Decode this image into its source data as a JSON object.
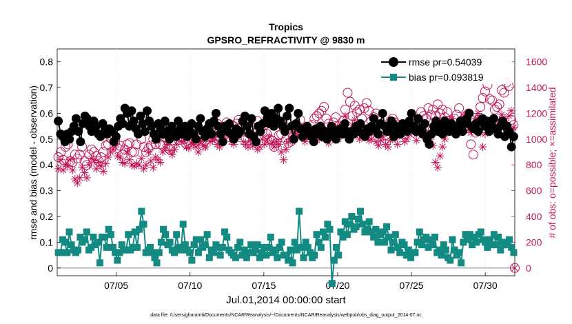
{
  "chart_data": {
    "type": "line",
    "title": "Tropics",
    "subtitle": "GPSRO_REFRACTIVITY @ 9830 m",
    "xlabel": "Jul.01,2014 00:00:00 start",
    "ylabel": "rmse and bias (model - observation)",
    "ylabel_right": "# of obs: o=possible; ×=assimilated",
    "footnote": "data file: /Users/gharamti/Documents/NCAR/Reanalysis/~/Documents/NCAR/Reanalysis/webpub/obs_diag_output_2014-07.nc",
    "xlim": [
      1.0,
      32.0
    ],
    "ylim": [
      -0.03,
      0.85
    ],
    "ylim_right": [
      -60,
      1700
    ],
    "x_ticks": [
      5,
      10,
      15,
      20,
      25,
      30
    ],
    "x_tick_labels": [
      "07/05",
      "07/10",
      "07/15",
      "07/20",
      "07/25",
      "07/30"
    ],
    "y_ticks": [
      0,
      0.1,
      0.2,
      0.3,
      0.4,
      0.5,
      0.6,
      0.7,
      0.8
    ],
    "y_tick_labels": [
      "0",
      "0.1",
      "0.2",
      "0.3",
      "0.4",
      "0.5",
      "0.6",
      "0.7",
      "0.8"
    ],
    "y_right_ticks": [
      0,
      200,
      400,
      600,
      800,
      1000,
      1200,
      1400,
      1600
    ],
    "y_right_tick_labels": [
      "0",
      "200",
      "400",
      "600",
      "800",
      "1000",
      "1200",
      "1400",
      "1600"
    ],
    "legend": {
      "position": "top-right",
      "entries": [
        "rmse pr=0.54039",
        "bias pr=0.093819"
      ]
    },
    "colors": {
      "rmse": "#000000",
      "bias": "#138a82",
      "obs": "#c2185b",
      "zero_line": "#aaaaaa"
    },
    "series": [
      {
        "name": "rmse",
        "axis": "left",
        "marker": "circle",
        "values": [
          0.57,
          0.52,
          0.51,
          0.49,
          0.52,
          0.5,
          0.53,
          0.55,
          0.58,
          0.53,
          0.49,
          0.56,
          0.59,
          0.58,
          0.55,
          0.53,
          0.57,
          0.55,
          0.52,
          0.51,
          0.56,
          0.54,
          0.52,
          0.54,
          0.53,
          0.49,
          0.51,
          0.55,
          0.58,
          0.56,
          0.62,
          0.6,
          0.55,
          0.61,
          0.57,
          0.54,
          0.52,
          0.59,
          0.56,
          0.53,
          0.61,
          0.57,
          0.55,
          0.52,
          0.5,
          0.56,
          0.54,
          0.52,
          0.57,
          0.53,
          0.5,
          0.55,
          0.53,
          0.51,
          0.57,
          0.54,
          0.52,
          0.55,
          0.51,
          0.53,
          0.56,
          0.52,
          0.5,
          0.55,
          0.58,
          0.53,
          0.51,
          0.54,
          0.56,
          0.52,
          0.57,
          0.6,
          0.55,
          0.52,
          0.49,
          0.55,
          0.53,
          0.56,
          0.52,
          0.5,
          0.54,
          0.52,
          0.53,
          0.57,
          0.59,
          0.55,
          0.52,
          0.58,
          0.51,
          0.49,
          0.55,
          0.53,
          0.56,
          0.61,
          0.58,
          0.56,
          0.6,
          0.55,
          0.58,
          0.62,
          0.57,
          0.55,
          0.53,
          0.59,
          0.62,
          0.55,
          0.5,
          0.56,
          0.6,
          0.54,
          0.51,
          0.53,
          0.55,
          0.53,
          0.51,
          0.49,
          0.54,
          0.52,
          0.55,
          0.51,
          0.53,
          0.5,
          0.52,
          0.55,
          0.52,
          0.5,
          0.53,
          0.54,
          0.52,
          0.56,
          0.53,
          0.5,
          0.53,
          0.52,
          0.55,
          0.53,
          0.56,
          0.52,
          0.51,
          0.54,
          0.53,
          0.55,
          0.58,
          0.54,
          0.52,
          0.56,
          0.6,
          0.55,
          0.53,
          0.54,
          0.57,
          0.51,
          0.55,
          0.53,
          0.52,
          0.56,
          0.55,
          0.53,
          0.57,
          0.6,
          0.55,
          0.53,
          0.58,
          0.54,
          0.52,
          0.56,
          0.5,
          0.48,
          0.52,
          0.55,
          0.57,
          0.53,
          0.55,
          0.52,
          0.57,
          0.55,
          0.53,
          0.56,
          0.54,
          0.52,
          0.55,
          0.57,
          0.53,
          0.56,
          0.58,
          0.6,
          0.55,
          0.54,
          0.56,
          0.53,
          0.57,
          0.58,
          0.55,
          0.57,
          0.53,
          0.56,
          0.58,
          0.54,
          0.52,
          0.55,
          0.57,
          0.51,
          0.55,
          0.53,
          0.47,
          0.51
        ]
      },
      {
        "name": "bias",
        "axis": "left",
        "marker": "square",
        "values": [
          0.06,
          0.06,
          0.11,
          0.1,
          0.06,
          0.14,
          0.09,
          0.07,
          0.06,
          0.07,
          0.12,
          0.1,
          0.11,
          0.14,
          0.07,
          0.08,
          0.12,
          0.09,
          0.1,
          0.02,
          0.12,
          0.12,
          0.08,
          0.15,
          0.13,
          0.08,
          0.06,
          0.03,
          0.06,
          0.09,
          0.07,
          0.07,
          0.13,
          0.07,
          0.08,
          0.14,
          0.08,
          0.15,
          0.22,
          0.17,
          0.06,
          0.07,
          0.08,
          0.06,
          0.04,
          0.02,
          0.06,
          0.1,
          0.15,
          0.13,
          0.09,
          0.1,
          0.07,
          0.06,
          0.13,
          0.08,
          0.07,
          0.17,
          0.09,
          0.07,
          0.06,
          0.03,
          0.09,
          0.11,
          0.06,
          0.11,
          0.08,
          0.09,
          0.13,
          0.04,
          0.07,
          0.06,
          0.09,
          0.08,
          0.05,
          0.08,
          0.14,
          0.12,
          0.07,
          0.06,
          0.05,
          0.04,
          0.08,
          0.1,
          0.05,
          0.07,
          0.04,
          0.06,
          0.09,
          0.06,
          0.07,
          0.09,
          0.04,
          0.06,
          0.08,
          0.05,
          0.08,
          0.12,
          0.06,
          0.07,
          0.04,
          0.08,
          0.1,
          0.05,
          0.05,
          0.03,
          0.07,
          0.02,
          0.1,
          0.07,
          0.22,
          0.08,
          0.04,
          0.1,
          0.08,
          0.06,
          0.04,
          0.05,
          0.13,
          0.1,
          0.08,
          0.14,
          0.12,
          0.17,
          0.15,
          -0.06,
          0.03,
          0.08,
          0.05,
          0.14,
          0.12,
          0.18,
          0.13,
          0.17,
          0.2,
          0.15,
          0.16,
          0.19,
          0.22,
          0.17,
          0.14,
          0.15,
          0.18,
          0.14,
          0.12,
          0.15,
          0.1,
          0.13,
          0.14,
          0.1,
          0.16,
          0.12,
          0.07,
          0.1,
          0.13,
          0.08,
          0.06,
          0.1,
          0.09,
          0.05,
          0.07,
          0.04,
          0.06,
          0.06,
          0.1,
          0.14,
          0.09,
          0.11,
          0.12,
          0.08,
          0.11,
          0.09,
          0.12,
          0.06,
          0.07,
          0.05,
          0.09,
          0.07,
          0.04,
          0.03,
          0.11,
          0.07,
          0.05,
          0.06,
          0.02,
          0.1,
          0.13,
          0.11,
          0.13,
          0.09,
          0.12,
          0.1,
          0.13,
          0.14,
          0.11,
          0.1,
          0.08,
          0.11,
          0.09,
          0.13,
          0.09,
          0.12,
          0.07,
          0.1,
          0.09,
          0.09,
          0.11,
          0.08,
          0.06
        ]
      },
      {
        "name": "possible",
        "axis": "right",
        "marker": "open-circle",
        "values": [
          860,
          900,
          840,
          940,
          960,
          830,
          820,
          880,
          850,
          880,
          940,
          830,
          800,
          880,
          920,
          900,
          870,
          830,
          860,
          900,
          950,
          960,
          1010,
          1040,
          980,
          930,
          950,
          880,
          920,
          960,
          970,
          900,
          900,
          960,
          1060,
          1000,
          940,
          900,
          930,
          950,
          1000,
          960,
          1020,
          960,
          950,
          1040,
          990,
          920,
          990,
          1070,
          1100,
          1040,
          1010,
          1000,
          960,
          990,
          1050,
          1000,
          980,
          1040,
          1000,
          950,
          990,
          1060,
          1100,
          1040,
          1090,
          1120,
          1020,
          1070,
          1090,
          1130,
          1100,
          1040,
          1100,
          1120,
          1150,
          1090,
          1060,
          1010,
          1050,
          1100,
          1000,
          1090,
          1140,
          1100,
          1060,
          1110,
          1040,
          1000,
          990,
          940,
          970,
          1030,
          1040,
          1110,
          1000,
          970,
          980,
          1020,
          1060,
          1100,
          1150,
          1080,
          1060,
          1030,
          1070,
          1110,
          1160,
          1180,
          1200,
          1220,
          1250,
          1160,
          1120,
          1060,
          1130,
          1170,
          1100,
          1080,
          1140,
          1230,
          1360,
          1290,
          1180,
          1260,
          1210,
          1230,
          1160,
          1240,
          1280,
          1220,
          1140,
          1170,
          1200,
          1110,
          1060,
          1080,
          1030,
          1100,
          1140,
          1160,
          1130,
          1080,
          1110,
          1070,
          1040,
          1080,
          1100,
          1130,
          1050,
          1100,
          1150,
          1210,
          1180,
          1160,
          1240,
          1190,
          1230,
          1180,
          1270,
          1200,
          1230,
          1170,
          1210,
          1140,
          1090,
          1160,
          1190,
          1240,
          1140,
          1120,
          1180,
          1200,
          960,
          880,
          1050,
          1150,
          1250,
          1320,
          1370,
          1420,
          1310,
          1300,
          1230,
          1250,
          1270,
          1380,
          1360,
          1440,
          1410,
          1150,
          1110
        ]
      },
      {
        "name": "assimilated",
        "axis": "right",
        "marker": "asterisk",
        "values": [
          770,
          840,
          760,
          800,
          790,
          840,
          760,
          690,
          660,
          700,
          780,
          740,
          700,
          800,
          850,
          830,
          770,
          820,
          790,
          750,
          810,
          860,
          900,
          920,
          940,
          870,
          860,
          820,
          810,
          900,
          840,
          800,
          790,
          810,
          800,
          850,
          770,
          800,
          900,
          830,
          780,
          860,
          840,
          820,
          900,
          930,
          960,
          910,
          880,
          920,
          960,
          1020,
          980,
          990,
          940,
          930,
          970,
          960,
          940,
          900,
          980,
          950,
          940,
          1020,
          980,
          990,
          1000,
          960,
          940,
          970,
          1010,
          1050,
          1020,
          980,
          960,
          1000,
          1030,
          1040,
          980,
          960,
          940,
          990,
          950,
          960,
          920,
          940,
          1000,
          960,
          990,
          1020,
          970,
          940,
          980,
          960,
          900,
          840,
          920,
          980,
          1000,
          1040,
          1060,
          1030,
          1050,
          1010,
          980,
          1020,
          1080,
          1050,
          1000,
          1030,
          1000,
          1020,
          1060,
          1010,
          970,
          1030,
          1060,
          1090,
          1000,
          1070,
          1120,
          1180,
          1070,
          1040,
          1110,
          1150,
          1040,
          1000,
          1060,
          1080,
          1020,
          990,
          1000,
          1040,
          980,
          950,
          990,
          1020,
          960,
          940,
          990,
          1030,
          1000,
          960,
          1030,
          1060,
          980,
          1000,
          1040,
          1050,
          1080,
          990,
          1060,
          1100,
          1120,
          1010,
          1060,
          1000,
          950,
          820,
          780,
          870,
          940,
          1000,
          1060,
          1120,
          1160,
          1060,
          1080,
          1120,
          1140,
          1180,
          1130,
          1070,
          1050,
          1110,
          1160,
          1200,
          1050,
          940,
          1040,
          1120,
          1100,
          1080,
          1060,
          1100,
          1150,
          1190,
          1160,
          1130,
          1180,
          1220,
          1090
        ]
      }
    ]
  }
}
